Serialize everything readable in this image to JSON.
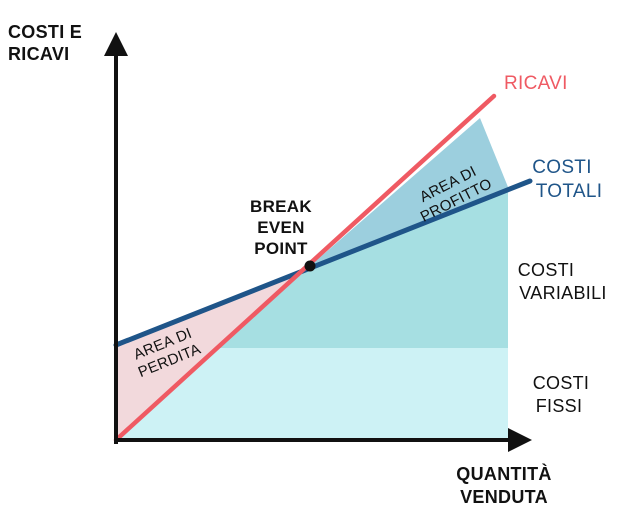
{
  "axes": {
    "y_label_line1": "COSTI E",
    "y_label_line2": "RICAVI",
    "x_label_line1": "QUANTITÀ",
    "x_label_line2": "VENDUTA"
  },
  "lines": {
    "ricavi_label": "RICAVI",
    "costi_totali_line1": "COSTI",
    "costi_totali_line2": "TOTALI"
  },
  "break_even": {
    "line1": "BREAK",
    "line2": "EVEN",
    "line3": "POINT"
  },
  "areas": {
    "profitto_line1": "AREA DI",
    "profitto_line2": "PROFITTO",
    "perdita_line1": "AREA DI",
    "perdita_line2": "PERDITA"
  },
  "cost_labels": {
    "variabili_line1": "COSTI",
    "variabili_line2": "VARIABILI",
    "fissi_line1": "COSTI",
    "fissi_line2": "FISSI"
  },
  "colors": {
    "ricavi": "#ef5a63",
    "costi_totali": "#1f5589",
    "fixed_costs_fill": "#cdf2f5",
    "variable_costs_fill": "#a6dfe2",
    "profit_fill": "#9ccfde",
    "loss_fill": "#f2d9dc",
    "axis": "#111111"
  }
}
